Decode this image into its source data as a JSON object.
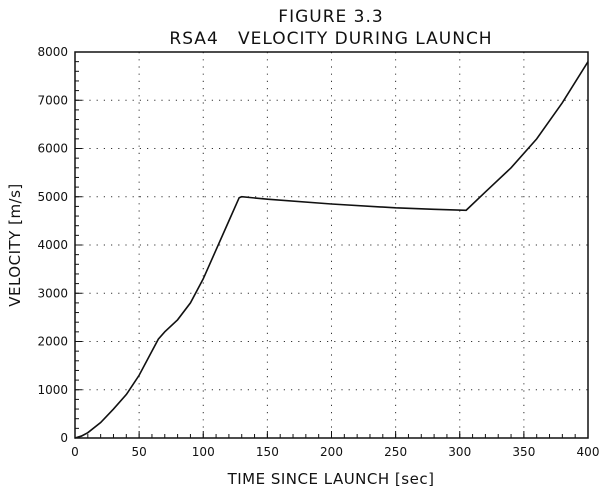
{
  "chart_data": {
    "type": "line",
    "title": "FIGURE 3.3",
    "subtitle": "RSA4   VELOCITY DURING LAUNCH",
    "xlabel": "TIME SINCE LAUNCH [sec]",
    "ylabel": "VELOCITY [m/s]",
    "xlim": [
      0,
      400
    ],
    "ylim": [
      0,
      8000
    ],
    "xticks": [
      0,
      50,
      100,
      150,
      200,
      250,
      300,
      350,
      400
    ],
    "yticks": [
      0,
      1000,
      2000,
      3000,
      4000,
      5000,
      6000,
      7000,
      8000
    ],
    "grid": true,
    "series": [
      {
        "x": [
          0,
          5,
          10,
          20,
          30,
          40,
          50,
          60,
          65,
          70,
          80,
          90,
          100,
          110,
          120,
          128,
          130,
          150,
          200,
          250,
          280,
          305,
          320,
          340,
          360,
          380,
          400
        ],
        "y": [
          0,
          40,
          110,
          320,
          600,
          900,
          1300,
          1800,
          2050,
          2200,
          2450,
          2800,
          3300,
          3900,
          4500,
          4980,
          5000,
          4950,
          4850,
          4770,
          4740,
          4720,
          5100,
          5600,
          6200,
          6950,
          7800
        ]
      }
    ]
  }
}
